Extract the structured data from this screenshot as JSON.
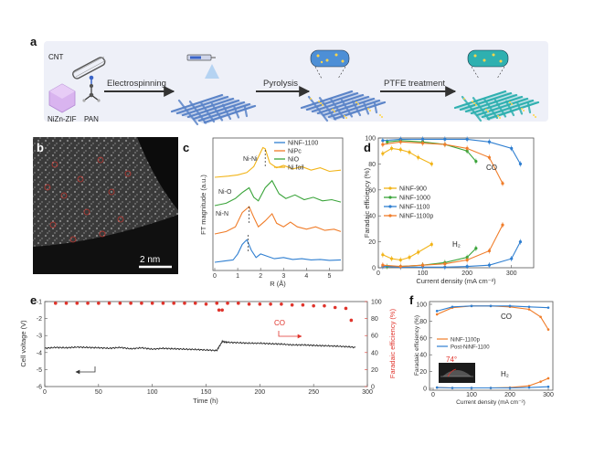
{
  "panel_a": {
    "label": "a",
    "materials": {
      "cnt": "CNT",
      "zif": "NiZn-ZIF",
      "pan": "PAN"
    },
    "steps": [
      "Electrospinning",
      "Pyrolysis",
      "PTFE treatment"
    ],
    "colors": {
      "banner": "#eef0f8",
      "fiber": "#5b84c8",
      "fiber_final": "#2fb0b0",
      "zif": "#d9b4ef",
      "arrow": "#333333"
    }
  },
  "panel_b": {
    "label": "b",
    "scale_bar": "2 nm"
  },
  "panel_c": {
    "label": "c",
    "ylabel": "FT magnitude (a.u.)",
    "xlabel": "R (Å)",
    "annotations": [
      "Ni-Ni",
      "Ni-O",
      "Ni-N"
    ]
  },
  "panel_d": {
    "label": "d",
    "ylabel": "Faradaic efficiency (%)",
    "xlabel": "Current density (mA cm⁻²)",
    "annotations": [
      "CO",
      "H₂"
    ]
  },
  "panel_e": {
    "label": "e",
    "ylabel_left": "Cell voltage (V)",
    "ylabel_right": "Faradaic efficiency (%)",
    "xlabel": "Time (h)",
    "annotation": "CO"
  },
  "panel_f": {
    "label": "f",
    "ylabel": "Faradaic efficiency (%)",
    "xlabel": "Current density (mA cm⁻²)",
    "annotations": [
      "CO",
      "H₂"
    ],
    "contact_angle": "74°"
  },
  "chart_data": [
    {
      "id": "c",
      "type": "line",
      "xlabel": "R (Å)",
      "ylabel": "FT magnitude (a.u.)",
      "xlim": [
        0,
        5.5
      ],
      "xticks": [
        0,
        1,
        2,
        3,
        4,
        5
      ],
      "legend_position": "top-right",
      "series": [
        {
          "name": "NiNF-1100",
          "color": "#2f7fd1",
          "offset": 0,
          "x": [
            0,
            0.4,
            0.8,
            1.0,
            1.2,
            1.4,
            1.6,
            1.8,
            2.0,
            2.3,
            2.6,
            3.0,
            3.4,
            3.8,
            4.2,
            4.6,
            5.0,
            5.5
          ],
          "y": [
            0,
            0.05,
            0.1,
            0.35,
            0.75,
            0.95,
            0.5,
            0.2,
            0.35,
            0.25,
            0.15,
            0.2,
            0.12,
            0.15,
            0.1,
            0.12,
            0.08,
            0.1
          ]
        },
        {
          "name": "NiPc",
          "color": "#f07d2a",
          "offset": 1,
          "x": [
            0,
            0.5,
            0.9,
            1.2,
            1.5,
            1.7,
            1.9,
            2.2,
            2.5,
            2.7,
            3.0,
            3.3,
            3.6,
            4.0,
            4.4,
            4.8,
            5.2,
            5.5
          ],
          "y": [
            0,
            0.1,
            0.3,
            0.9,
            1.15,
            0.7,
            0.3,
            0.55,
            0.85,
            0.45,
            0.3,
            0.5,
            0.3,
            0.2,
            0.3,
            0.15,
            0.2,
            0.1
          ]
        },
        {
          "name": "NiO",
          "color": "#3aa43a",
          "offset": 2,
          "x": [
            0,
            0.5,
            0.9,
            1.2,
            1.5,
            1.7,
            1.9,
            2.2,
            2.5,
            2.8,
            3.1,
            3.5,
            3.9,
            4.3,
            4.7,
            5.1,
            5.5
          ],
          "y": [
            0,
            0.1,
            0.3,
            0.55,
            0.75,
            0.35,
            0.2,
            0.75,
            1.05,
            0.5,
            0.3,
            0.45,
            0.25,
            0.35,
            0.2,
            0.25,
            0.15
          ]
        },
        {
          "name": "Ni foil",
          "color": "#f2b418",
          "offset": 3,
          "x": [
            0,
            0.6,
            1.0,
            1.4,
            1.7,
            1.9,
            2.1,
            2.2,
            2.4,
            2.7,
            3.0,
            3.4,
            3.8,
            4.2,
            4.6,
            5.0,
            5.5
          ],
          "y": [
            0,
            0.05,
            0.1,
            0.2,
            0.45,
            0.85,
            1.25,
            1.2,
            0.6,
            0.4,
            0.5,
            0.35,
            0.45,
            0.3,
            0.4,
            0.25,
            0.3
          ]
        }
      ]
    },
    {
      "id": "d",
      "type": "line",
      "xlabel": "Current density (mA cm⁻²)",
      "ylabel": "Faradaic efficiency (%)",
      "xlim": [
        0,
        350
      ],
      "ylim": [
        0,
        100
      ],
      "xticks": [
        0,
        100,
        200,
        300
      ],
      "yticks": [
        0,
        20,
        40,
        60,
        80,
        100
      ],
      "legend_position": "center-left",
      "series": [
        {
          "name": "NiNF-900",
          "color": "#f2b418",
          "co": {
            "x": [
              10,
              30,
              50,
              70,
              90,
              120
            ],
            "y": [
              88,
              92,
              91,
              89,
              85,
              80
            ]
          },
          "h2": {
            "x": [
              10,
              30,
              50,
              70,
              90,
              120
            ],
            "y": [
              10,
              7,
              6,
              8,
              12,
              18
            ]
          }
        },
        {
          "name": "NiNF-1000",
          "color": "#3aa43a",
          "co": {
            "x": [
              20,
              50,
              100,
              150,
              200,
              220
            ],
            "y": [
              97,
              98,
              97,
              95,
              90,
              82
            ]
          },
          "h2": {
            "x": [
              20,
              50,
              100,
              150,
              200,
              220
            ],
            "y": [
              1,
              1,
              2,
              4,
              8,
              15
            ]
          }
        },
        {
          "name": "NiNF-1100",
          "color": "#2f7fd1",
          "co": {
            "x": [
              10,
              50,
              100,
              150,
              200,
              250,
              300,
              320
            ],
            "y": [
              98,
              99,
              99,
              99,
              99,
              97,
              92,
              80
            ]
          },
          "h2": {
            "x": [
              10,
              50,
              100,
              150,
              200,
              250,
              300,
              320
            ],
            "y": [
              1,
              0.5,
              0.5,
              0.5,
              1,
              2,
              7,
              20
            ]
          }
        },
        {
          "name": "NiNF-1100p",
          "color": "#f07d2a",
          "co": {
            "x": [
              10,
              50,
              100,
              150,
              200,
              250,
              280
            ],
            "y": [
              95,
              97,
              96,
              95,
              92,
              85,
              65
            ]
          },
          "h2": {
            "x": [
              10,
              50,
              100,
              150,
              200,
              250,
              280
            ],
            "y": [
              2,
              1,
              2,
              3,
              6,
              13,
              33
            ]
          }
        }
      ]
    },
    {
      "id": "e",
      "type": "line",
      "xlabel": "Time (h)",
      "xlim": [
        0,
        300
      ],
      "xticks": [
        0,
        50,
        100,
        150,
        200,
        250,
        300
      ],
      "ylabel_left": "Cell voltage (V)",
      "ylim_left": [
        -6,
        -1
      ],
      "yticks_left": [
        -1,
        -2,
        -3,
        -4,
        -5,
        -6
      ],
      "ylabel_right": "Faradaic efficiency (%)",
      "ylim_right": [
        0,
        100
      ],
      "yticks_right": [
        0,
        20,
        40,
        60,
        80,
        100
      ],
      "series": [
        {
          "name": "Cell voltage",
          "color": "#222222",
          "axis": "left",
          "x": [
            0,
            10,
            20,
            30,
            40,
            50,
            60,
            70,
            80,
            90,
            100,
            110,
            120,
            130,
            140,
            150,
            160,
            165,
            170,
            180,
            190,
            200,
            210,
            220,
            230,
            240,
            250,
            260,
            270,
            280,
            290
          ],
          "y": [
            -3.75,
            -3.7,
            -3.72,
            -3.68,
            -3.7,
            -3.72,
            -3.75,
            -3.7,
            -3.78,
            -3.72,
            -3.8,
            -3.75,
            -3.78,
            -3.8,
            -3.82,
            -3.85,
            -3.88,
            -3.35,
            -3.4,
            -3.42,
            -3.45,
            -3.45,
            -3.48,
            -3.5,
            -3.55,
            -3.55,
            -3.58,
            -3.6,
            -3.62,
            -3.65,
            -3.7
          ]
        },
        {
          "name": "CO",
          "color": "#e0342c",
          "axis": "right",
          "x": [
            10,
            20,
            30,
            40,
            50,
            60,
            70,
            80,
            90,
            100,
            110,
            120,
            130,
            140,
            150,
            160,
            162,
            165,
            170,
            180,
            190,
            200,
            210,
            220,
            230,
            240,
            250,
            260,
            270,
            280,
            285
          ],
          "y": [
            98,
            98,
            98,
            98,
            98,
            98,
            98,
            98,
            98,
            98,
            98,
            98,
            98,
            98,
            97,
            98,
            90,
            90,
            98,
            98,
            97,
            97,
            97,
            97,
            96,
            96,
            95,
            95,
            93,
            92,
            78
          ]
        }
      ]
    },
    {
      "id": "f",
      "type": "line",
      "xlabel": "Current density (mA cm⁻²)",
      "ylabel": "Faradaic efficiency (%)",
      "xlim": [
        0,
        300
      ],
      "ylim": [
        0,
        100
      ],
      "xticks": [
        0,
        100,
        200,
        300
      ],
      "yticks": [
        0,
        20,
        40,
        60,
        80,
        100
      ],
      "legend_position": "center-left",
      "series": [
        {
          "name": "NiNF-1100p",
          "color": "#f07d2a",
          "co": {
            "x": [
              10,
              50,
              100,
              150,
              200,
              250,
              280,
              300
            ],
            "y": [
              88,
              96,
              98,
              98,
              97,
              94,
              85,
              70
            ]
          },
          "h2": {
            "x": [
              10,
              50,
              100,
              150,
              200,
              250,
              280,
              300
            ],
            "y": [
              1,
              0.5,
              0.5,
              0.5,
              1,
              3,
              8,
              12
            ]
          }
        },
        {
          "name": "Post-NiNF-1100",
          "color": "#2f7fd1",
          "co": {
            "x": [
              10,
              50,
              100,
              150,
              200,
              250,
              300
            ],
            "y": [
              92,
              97,
              98,
              98,
              98,
              97,
              96
            ]
          },
          "h2": {
            "x": [
              10,
              50,
              100,
              150,
              200,
              250,
              300
            ],
            "y": [
              1,
              0.5,
              0.5,
              0.5,
              0.5,
              1,
              2
            ]
          }
        }
      ]
    }
  ]
}
